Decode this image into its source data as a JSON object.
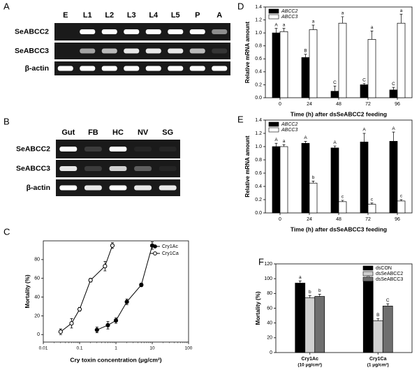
{
  "gels": [
    {
      "panel": "A",
      "lanes": [
        "E",
        "L1",
        "L2",
        "L3",
        "L4",
        "L5",
        "P",
        "A"
      ],
      "rows": [
        "SeABCC2",
        "SeABCC3",
        "β-actin"
      ]
    },
    {
      "panel": "B",
      "lanes": [
        "Gut",
        "FB",
        "HC",
        "NV",
        "SG"
      ],
      "rows": [
        "SeABCC2",
        "SeABCC3",
        "β-actin"
      ]
    }
  ],
  "chart_data": [
    {
      "panel": "C",
      "type": "line",
      "xlabel": "Cry toxin concentration (μg/cm²)",
      "ylabel": "Mortality (%)",
      "xscale": "log",
      "xlim": [
        0.01,
        100
      ],
      "xticks": [
        0.01,
        0.1,
        1,
        10,
        100
      ],
      "ylim": [
        -8,
        100
      ],
      "yticks": [
        0,
        20,
        40,
        60,
        80
      ],
      "legend": "upper right",
      "series": [
        {
          "name": "Cry1Ac",
          "color": "#000000",
          "marker": "filled",
          "x": [
            0.3,
            0.6,
            1,
            2,
            5,
            10
          ],
          "values": [
            5,
            10,
            15,
            35,
            53,
            95
          ],
          "errors": [
            3,
            4,
            3,
            3,
            2,
            4
          ]
        },
        {
          "name": "Cry1Ca",
          "color": "#000000",
          "marker": "open",
          "x": [
            0.03,
            0.06,
            0.1,
            0.2,
            0.5,
            0.8
          ],
          "values": [
            3,
            12,
            27,
            58,
            73,
            95
          ],
          "errors": [
            3,
            5,
            2,
            2,
            5,
            3
          ]
        }
      ]
    },
    {
      "panel": "D",
      "type": "bar",
      "xlabel": "Time (h) after dsSeABCC2 feeding",
      "ylabel": "Relative mRNA amount",
      "categories": [
        "0",
        "24",
        "48",
        "72",
        "96"
      ],
      "ylim": [
        0,
        1.4
      ],
      "yticks": [
        {
          "value": 0,
          "label": "0.0"
        },
        0.2,
        0.4,
        0.6,
        0.8,
        {
          "value": 1,
          "label": "1.0"
        },
        1.2,
        1.4
      ],
      "legend": "upper left",
      "series": [
        {
          "name": "ABCC2",
          "color": "#000000",
          "values": [
            1.0,
            0.62,
            0.1,
            0.2,
            0.12
          ],
          "errors": [
            0.07,
            0.05,
            0.08,
            0.02,
            0.04
          ],
          "letters": [
            "A",
            "B",
            "C",
            "C",
            "C"
          ]
        },
        {
          "name": "ABCC3",
          "color": "#ffffff",
          "values": [
            1.02,
            1.05,
            1.15,
            0.9,
            1.15
          ],
          "errors": [
            0.05,
            0.07,
            0.1,
            0.13,
            0.14
          ],
          "letters": [
            "a",
            "a",
            "a",
            "a",
            "a"
          ]
        }
      ]
    },
    {
      "panel": "E",
      "type": "bar",
      "xlabel": "Time (h) after dsSeABCC3 feeding",
      "ylabel": "Relative mRNA amount",
      "categories": [
        "0",
        "24",
        "48",
        "72",
        "96"
      ],
      "ylim": [
        0,
        1.4
      ],
      "yticks": [
        {
          "value": 0,
          "label": "0.0"
        },
        0.2,
        0.4,
        0.6,
        0.8,
        {
          "value": 1,
          "label": "1.0"
        },
        1.2,
        1.4
      ],
      "legend": "upper left",
      "series": [
        {
          "name": "ABCC2",
          "color": "#000000",
          "values": [
            1.0,
            1.05,
            0.98,
            1.07,
            1.08
          ],
          "errors": [
            0.05,
            0.03,
            0.03,
            0.13,
            0.14
          ],
          "letters": [
            "A",
            "A",
            "A",
            "A",
            "A"
          ]
        },
        {
          "name": "ABCC3",
          "color": "#ffffff",
          "values": [
            1.0,
            0.45,
            0.17,
            0.13,
            0.18
          ],
          "errors": [
            0.03,
            0.03,
            0.02,
            0.02,
            0.02
          ],
          "letters": [
            "a",
            "b",
            "c",
            "c",
            "c"
          ]
        }
      ]
    },
    {
      "panel": "F",
      "type": "bar",
      "ylabel": "Mortality (%)",
      "categories": [
        "Cry1Ac",
        "Cry1Ca"
      ],
      "category_notes": [
        "(10 μg/cm²)",
        "(1 μg/cm²)"
      ],
      "ylim": [
        0,
        120
      ],
      "yticks": [
        0,
        20,
        40,
        60,
        80,
        100,
        120
      ],
      "legend": "upper right",
      "series": [
        {
          "name": "dsCON",
          "color": "#000000",
          "values": [
            94,
            97
          ],
          "errors": [
            3,
            2
          ],
          "letters": [
            "a",
            "A"
          ]
        },
        {
          "name": "dsSeABCC2",
          "color": "#d0d0d0",
          "values": [
            74,
            43
          ],
          "errors": [
            3,
            3
          ],
          "letters": [
            "b",
            "B"
          ]
        },
        {
          "name": "dsSeABCC3",
          "color": "#6e6e6e",
          "values": [
            76,
            63
          ],
          "errors": [
            3,
            3
          ],
          "letters": [
            "b",
            "C"
          ]
        }
      ]
    }
  ]
}
